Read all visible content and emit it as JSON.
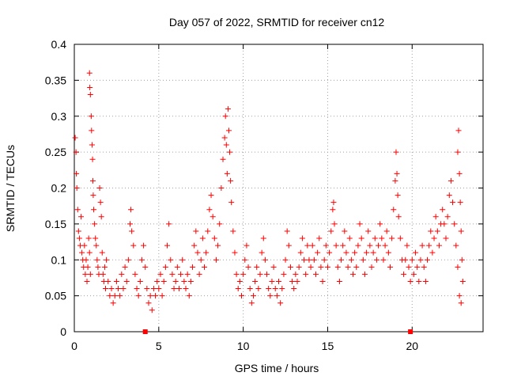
{
  "chart_data": {
    "type": "scatter",
    "title": "Day 057 of 2022, SRMTID for receiver cn12",
    "xlabel": "GPS time / hours",
    "ylabel": "SRMTID / TECUs",
    "xlim": [
      0,
      24.2
    ],
    "ylim": [
      0,
      0.4
    ],
    "xticks": [
      0,
      5,
      10,
      15,
      20
    ],
    "yticks": [
      0,
      0.05,
      0.1,
      0.15,
      0.2,
      0.25,
      0.3,
      0.35,
      0.4
    ],
    "xtick_labels": [
      "0",
      "5",
      "10",
      "15",
      "20"
    ],
    "ytick_labels": [
      "0",
      "0.05",
      "0.1",
      "0.15",
      "0.2",
      "0.25",
      "0.3",
      "0.35",
      "0.4"
    ],
    "grid": true,
    "marker_color": "#ff0000",
    "axis_markers": [
      4.2,
      19.9
    ],
    "series": [
      {
        "name": "SRMTID",
        "points": [
          [
            0.05,
            0.27
          ],
          [
            0.1,
            0.25
          ],
          [
            0.12,
            0.22
          ],
          [
            0.15,
            0.2
          ],
          [
            0.2,
            0.17
          ],
          [
            0.25,
            0.14
          ],
          [
            0.3,
            0.13
          ],
          [
            0.35,
            0.12
          ],
          [
            0.4,
            0.16
          ],
          [
            0.45,
            0.11
          ],
          [
            0.5,
            0.1
          ],
          [
            0.55,
            0.09
          ],
          [
            0.6,
            0.12
          ],
          [
            0.65,
            0.08
          ],
          [
            0.7,
            0.1
          ],
          [
            0.75,
            0.07
          ],
          [
            0.8,
            0.09
          ],
          [
            0.85,
            0.13
          ],
          [
            0.9,
            0.11
          ],
          [
            0.95,
            0.08
          ],
          [
            0.9,
            0.36
          ],
          [
            0.92,
            0.34
          ],
          [
            0.95,
            0.33
          ],
          [
            1.0,
            0.3
          ],
          [
            1.02,
            0.28
          ],
          [
            1.05,
            0.26
          ],
          [
            1.08,
            0.24
          ],
          [
            1.1,
            0.21
          ],
          [
            1.12,
            0.19
          ],
          [
            1.15,
            0.17
          ],
          [
            1.2,
            0.15
          ],
          [
            1.25,
            0.13
          ],
          [
            1.3,
            0.12
          ],
          [
            1.35,
            0.1
          ],
          [
            1.4,
            0.09
          ],
          [
            1.45,
            0.08
          ],
          [
            1.5,
            0.2
          ],
          [
            1.55,
            0.18
          ],
          [
            1.6,
            0.16
          ],
          [
            1.65,
            0.11
          ],
          [
            1.7,
            0.08
          ],
          [
            1.75,
            0.07
          ],
          [
            1.8,
            0.09
          ],
          [
            1.85,
            0.06
          ],
          [
            1.9,
            0.1
          ],
          [
            2.0,
            0.07
          ],
          [
            2.1,
            0.05
          ],
          [
            2.2,
            0.06
          ],
          [
            2.3,
            0.04
          ],
          [
            2.4,
            0.05
          ],
          [
            2.5,
            0.07
          ],
          [
            2.6,
            0.06
          ],
          [
            2.7,
            0.05
          ],
          [
            2.8,
            0.08
          ],
          [
            2.9,
            0.06
          ],
          [
            3.0,
            0.09
          ],
          [
            3.1,
            0.07
          ],
          [
            3.2,
            0.1
          ],
          [
            3.3,
            0.15
          ],
          [
            3.35,
            0.17
          ],
          [
            3.4,
            0.14
          ],
          [
            3.5,
            0.12
          ],
          [
            3.6,
            0.08
          ],
          [
            3.7,
            0.06
          ],
          [
            3.8,
            0.05
          ],
          [
            3.9,
            0.07
          ],
          [
            4.0,
            0.1
          ],
          [
            4.1,
            0.12
          ],
          [
            4.2,
            0.09
          ],
          [
            4.3,
            0.06
          ],
          [
            4.4,
            0.04
          ],
          [
            4.5,
            0.05
          ],
          [
            4.6,
            0.03
          ],
          [
            4.7,
            0.06
          ],
          [
            4.8,
            0.05
          ],
          [
            4.9,
            0.07
          ],
          [
            5.0,
            0.06
          ],
          [
            5.1,
            0.08
          ],
          [
            5.2,
            0.05
          ],
          [
            5.3,
            0.07
          ],
          [
            5.4,
            0.09
          ],
          [
            5.5,
            0.12
          ],
          [
            5.6,
            0.15
          ],
          [
            5.7,
            0.1
          ],
          [
            5.8,
            0.08
          ],
          [
            5.9,
            0.06
          ],
          [
            6.0,
            0.07
          ],
          [
            6.1,
            0.09
          ],
          [
            6.2,
            0.06
          ],
          [
            6.3,
            0.08
          ],
          [
            6.4,
            0.1
          ],
          [
            6.5,
            0.07
          ],
          [
            6.6,
            0.06
          ],
          [
            6.7,
            0.08
          ],
          [
            6.8,
            0.05
          ],
          [
            6.9,
            0.07
          ],
          [
            7.0,
            0.09
          ],
          [
            7.1,
            0.12
          ],
          [
            7.2,
            0.14
          ],
          [
            7.3,
            0.11
          ],
          [
            7.4,
            0.08
          ],
          [
            7.5,
            0.1
          ],
          [
            7.6,
            0.13
          ],
          [
            7.7,
            0.09
          ],
          [
            7.8,
            0.11
          ],
          [
            7.9,
            0.14
          ],
          [
            8.0,
            0.17
          ],
          [
            8.1,
            0.19
          ],
          [
            8.2,
            0.16
          ],
          [
            8.3,
            0.13
          ],
          [
            8.4,
            0.1
          ],
          [
            8.5,
            0.12
          ],
          [
            8.6,
            0.15
          ],
          [
            8.7,
            0.2
          ],
          [
            8.8,
            0.24
          ],
          [
            8.9,
            0.27
          ],
          [
            8.95,
            0.3
          ],
          [
            9.0,
            0.26
          ],
          [
            9.05,
            0.22
          ],
          [
            9.1,
            0.31
          ],
          [
            9.15,
            0.28
          ],
          [
            9.2,
            0.25
          ],
          [
            9.25,
            0.21
          ],
          [
            9.3,
            0.18
          ],
          [
            9.4,
            0.14
          ],
          [
            9.5,
            0.11
          ],
          [
            9.6,
            0.08
          ],
          [
            9.7,
            0.06
          ],
          [
            9.8,
            0.07
          ],
          [
            9.9,
            0.05
          ],
          [
            10.0,
            0.08
          ],
          [
            10.1,
            0.1
          ],
          [
            10.2,
            0.12
          ],
          [
            10.3,
            0.09
          ],
          [
            10.4,
            0.06
          ],
          [
            10.5,
            0.04
          ],
          [
            10.6,
            0.05
          ],
          [
            10.7,
            0.07
          ],
          [
            10.8,
            0.09
          ],
          [
            10.9,
            0.06
          ],
          [
            11.0,
            0.08
          ],
          [
            11.1,
            0.11
          ],
          [
            11.2,
            0.13
          ],
          [
            11.3,
            0.1
          ],
          [
            11.4,
            0.08
          ],
          [
            11.5,
            0.06
          ],
          [
            11.6,
            0.05
          ],
          [
            11.7,
            0.07
          ],
          [
            11.8,
            0.09
          ],
          [
            11.9,
            0.06
          ],
          [
            12.0,
            0.05
          ],
          [
            12.1,
            0.07
          ],
          [
            12.2,
            0.04
          ],
          [
            12.3,
            0.06
          ],
          [
            12.4,
            0.08
          ],
          [
            12.5,
            0.1
          ],
          [
            12.6,
            0.14
          ],
          [
            12.7,
            0.12
          ],
          [
            12.8,
            0.09
          ],
          [
            12.9,
            0.07
          ],
          [
            13.0,
            0.06
          ],
          [
            13.1,
            0.08
          ],
          [
            13.2,
            0.07
          ],
          [
            13.3,
            0.09
          ],
          [
            13.4,
            0.11
          ],
          [
            13.5,
            0.13
          ],
          [
            13.6,
            0.1
          ],
          [
            13.7,
            0.08
          ],
          [
            13.8,
            0.12
          ],
          [
            13.9,
            0.1
          ],
          [
            14.0,
            0.09
          ],
          [
            14.1,
            0.12
          ],
          [
            14.2,
            0.1
          ],
          [
            14.3,
            0.08
          ],
          [
            14.4,
            0.11
          ],
          [
            14.5,
            0.13
          ],
          [
            14.6,
            0.09
          ],
          [
            14.7,
            0.07
          ],
          [
            14.8,
            0.1
          ],
          [
            14.9,
            0.12
          ],
          [
            15.0,
            0.09
          ],
          [
            15.1,
            0.11
          ],
          [
            15.2,
            0.14
          ],
          [
            15.3,
            0.17
          ],
          [
            15.35,
            0.18
          ],
          [
            15.4,
            0.15
          ],
          [
            15.5,
            0.12
          ],
          [
            15.6,
            0.09
          ],
          [
            15.7,
            0.07
          ],
          [
            15.8,
            0.1
          ],
          [
            15.9,
            0.12
          ],
          [
            16.0,
            0.14
          ],
          [
            16.1,
            0.11
          ],
          [
            16.2,
            0.09
          ],
          [
            16.3,
            0.13
          ],
          [
            16.4,
            0.1
          ],
          [
            16.5,
            0.08
          ],
          [
            16.6,
            0.11
          ],
          [
            16.7,
            0.09
          ],
          [
            16.8,
            0.12
          ],
          [
            16.9,
            0.15
          ],
          [
            17.0,
            0.13
          ],
          [
            17.1,
            0.1
          ],
          [
            17.2,
            0.08
          ],
          [
            17.3,
            0.11
          ],
          [
            17.4,
            0.14
          ],
          [
            17.5,
            0.12
          ],
          [
            17.6,
            0.09
          ],
          [
            17.7,
            0.11
          ],
          [
            17.8,
            0.13
          ],
          [
            17.9,
            0.1
          ],
          [
            18.0,
            0.12
          ],
          [
            18.1,
            0.15
          ],
          [
            18.2,
            0.13
          ],
          [
            18.3,
            0.1
          ],
          [
            18.4,
            0.12
          ],
          [
            18.5,
            0.14
          ],
          [
            18.6,
            0.11
          ],
          [
            18.7,
            0.09
          ],
          [
            18.8,
            0.13
          ],
          [
            18.9,
            0.17
          ],
          [
            19.0,
            0.21
          ],
          [
            19.05,
            0.25
          ],
          [
            19.1,
            0.22
          ],
          [
            19.15,
            0.19
          ],
          [
            19.2,
            0.16
          ],
          [
            19.3,
            0.13
          ],
          [
            19.4,
            0.1
          ],
          [
            19.5,
            0.08
          ],
          [
            19.6,
            0.1
          ],
          [
            19.7,
            0.12
          ],
          [
            19.8,
            0.09
          ],
          [
            19.9,
            0.07
          ],
          [
            20.0,
            0.1
          ],
          [
            20.1,
            0.08
          ],
          [
            20.2,
            0.11
          ],
          [
            20.3,
            0.09
          ],
          [
            20.4,
            0.07
          ],
          [
            20.5,
            0.1
          ],
          [
            20.6,
            0.12
          ],
          [
            20.7,
            0.09
          ],
          [
            20.8,
            0.07
          ],
          [
            20.9,
            0.1
          ],
          [
            21.0,
            0.12
          ],
          [
            21.1,
            0.14
          ],
          [
            21.2,
            0.11
          ],
          [
            21.3,
            0.13
          ],
          [
            21.4,
            0.16
          ],
          [
            21.5,
            0.14
          ],
          [
            21.6,
            0.12
          ],
          [
            21.7,
            0.15
          ],
          [
            21.8,
            0.17
          ],
          [
            21.9,
            0.15
          ],
          [
            22.0,
            0.13
          ],
          [
            22.1,
            0.16
          ],
          [
            22.2,
            0.19
          ],
          [
            22.3,
            0.21
          ],
          [
            22.4,
            0.18
          ],
          [
            22.5,
            0.15
          ],
          [
            22.6,
            0.12
          ],
          [
            22.7,
            0.25
          ],
          [
            22.75,
            0.28
          ],
          [
            22.8,
            0.22
          ],
          [
            22.85,
            0.18
          ],
          [
            22.9,
            0.14
          ],
          [
            22.95,
            0.1
          ],
          [
            23.0,
            0.07
          ],
          [
            22.8,
            0.05
          ],
          [
            22.9,
            0.04
          ],
          [
            22.7,
            0.09
          ]
        ]
      }
    ]
  }
}
